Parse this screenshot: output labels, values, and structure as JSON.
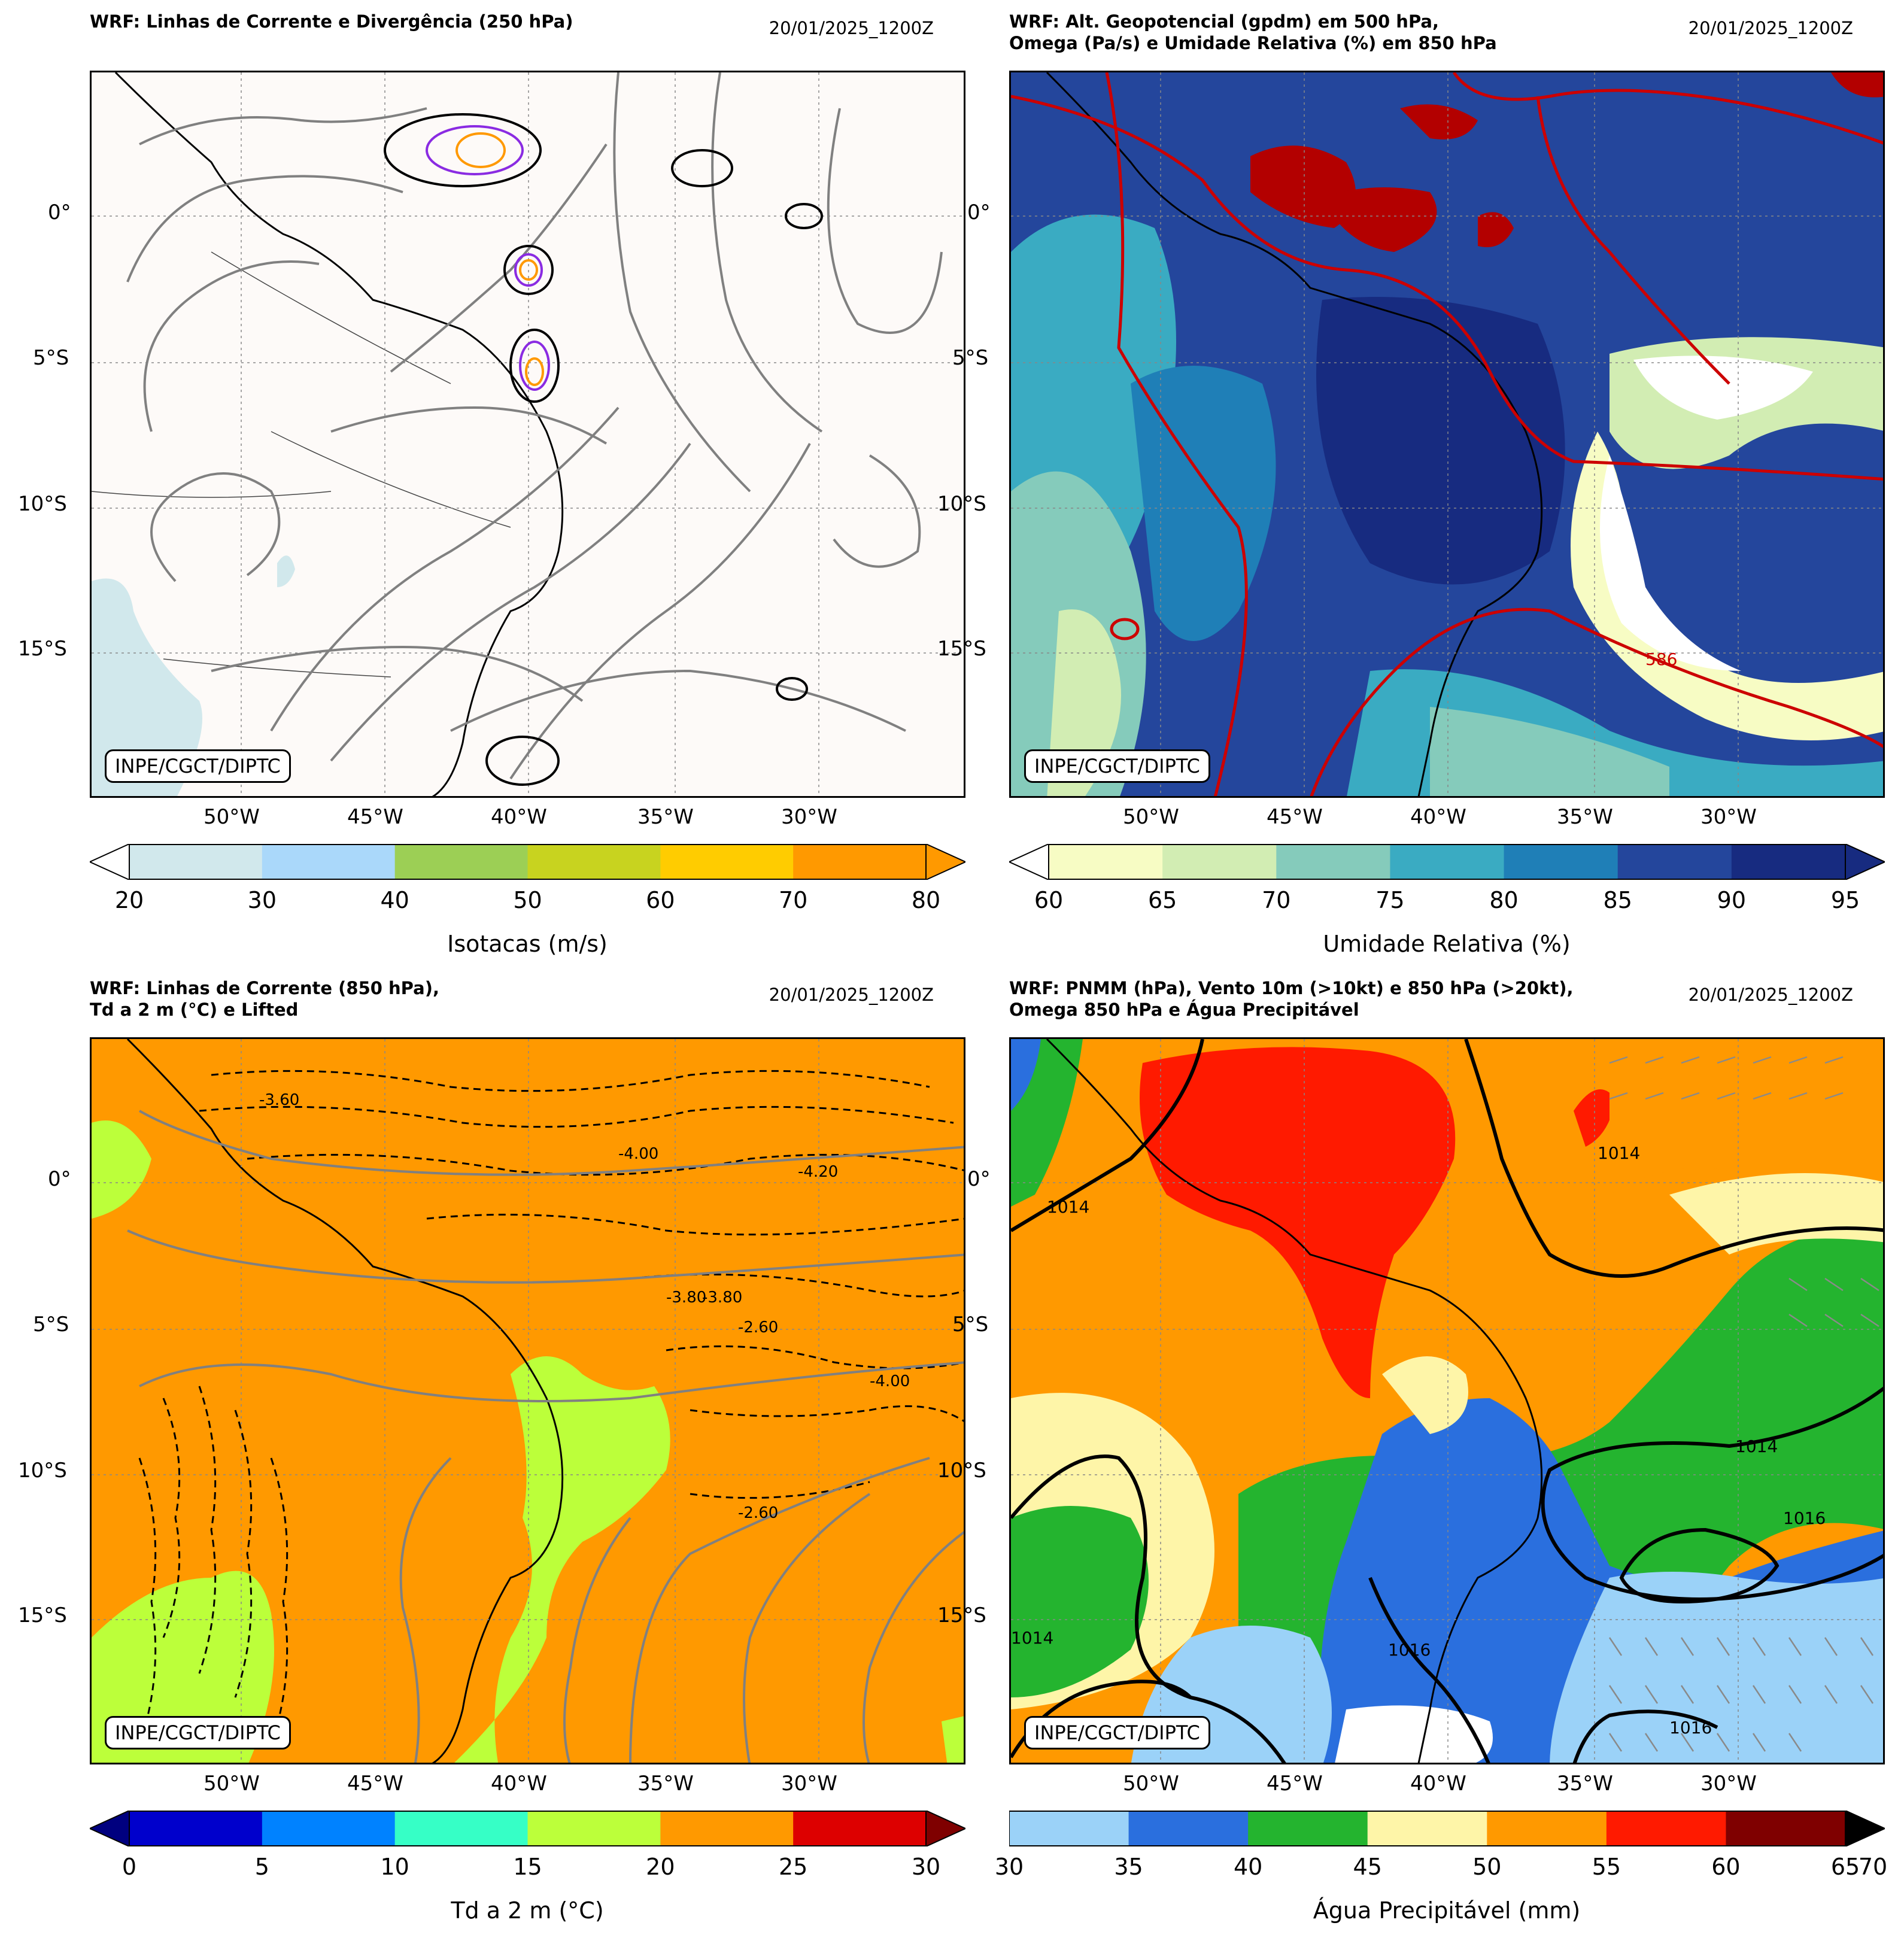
{
  "credit": "INPE/CGCT/DIPTC",
  "lat_labels": [
    "0°",
    "5°S",
    "10°S",
    "15°S"
  ],
  "lon_labels": [
    "50°W",
    "45°W",
    "40°W",
    "35°W",
    "30°W"
  ],
  "panels": [
    {
      "title": "WRF: Linhas de Corrente e Divergência (250 hPa)",
      "date": "20/01/2025_1200Z",
      "colorbar": {
        "label": "Isotacas (m/s)",
        "ticks": [
          "20",
          "30",
          "40",
          "50",
          "60",
          "70",
          "80"
        ],
        "colors": [
          "#d1e8ec",
          "#aad8fa",
          "#9ccf55",
          "#c8d31f",
          "#ffcc00",
          "#ff9900"
        ]
      },
      "background": "#fdfaf8"
    },
    {
      "title": "WRF: Alt. Geopotencial (gpdm) em 500 hPa,\nOmega (Pa/s) e Umidade Relativa (%) em 850 hPa",
      "date": "20/01/2025_1200Z",
      "colorbar": {
        "label": "Umidade Relativa (%)",
        "ticks": [
          "60",
          "65",
          "70",
          "75",
          "80",
          "85",
          "90",
          "95"
        ],
        "colors": [
          "#f7fcc4",
          "#d2edb3",
          "#85cbbb",
          "#3aabc2",
          "#1f7fb7",
          "#24469c",
          "#172b80"
        ]
      },
      "contour_label": "586",
      "background": "#1f4f9a"
    },
    {
      "title": "WRF: Linhas de Corrente (850 hPa),\nTd a 2 m (°C) e Lifted",
      "date": "20/01/2025_1200Z",
      "colorbar": {
        "label": "Td a 2 m (°C)",
        "ticks": [
          "0",
          "5",
          "10",
          "15",
          "20",
          "25",
          "30"
        ],
        "colors": [
          "#0000cc",
          "#0082ff",
          "#36ffc6",
          "#bcff3a",
          "#ff9900",
          "#dd0000"
        ]
      },
      "contour_labels": [
        "-3.60",
        "-4.00",
        "-4.20",
        "-3.80",
        "-2.60",
        "-2.60",
        "-4.00",
        "-3.80"
      ],
      "background": "#ff9900"
    },
    {
      "title": "WRF: PNMM (hPa), Vento 10m (>10kt) e 850 hPa (>20kt),\nOmega 850 hPa e Água Precipitável",
      "date": "20/01/2025_1200Z",
      "colorbar": {
        "label": "Água Precipitável (mm)",
        "ticks": [
          "30",
          "35",
          "40",
          "45",
          "50",
          "55",
          "60",
          "65",
          "70"
        ],
        "colors": [
          "#9bd2f8",
          "#2a6fde",
          "#24b42f",
          "#fef5a8",
          "#ff9900",
          "#ff1a00",
          "#7f0000"
        ]
      },
      "contour_labels": [
        "1014",
        "1014",
        "1014",
        "1014",
        "1016",
        "1016",
        "1016"
      ],
      "background": "#ff9900"
    }
  ]
}
